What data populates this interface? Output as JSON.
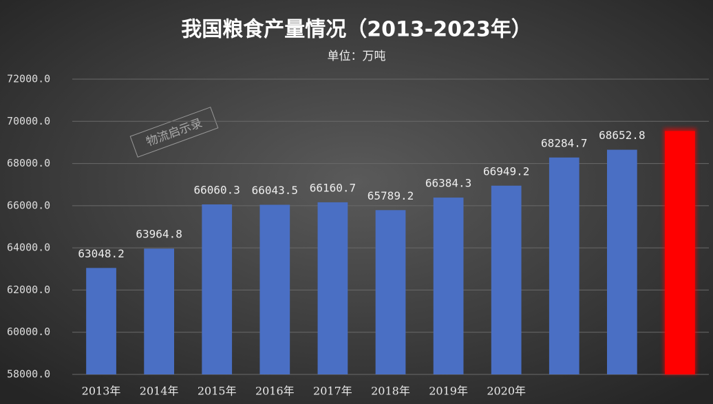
{
  "chart_data": {
    "type": "bar",
    "title": "我国粮食产量情况（2013-2023年）",
    "subtitle": "单位：万吨",
    "watermark": "物流启示录",
    "categories": [
      "2013年",
      "2014年",
      "2015年",
      "2016年",
      "2017年",
      "2018年",
      "2019年",
      "2020年",
      null,
      null,
      null
    ],
    "values": [
      63048.2,
      63964.8,
      66060.3,
      66043.5,
      66160.7,
      65789.2,
      66384.3,
      66949.2,
      68284.7,
      68652.8,
      69541
    ],
    "value_labels": [
      "63048.2",
      "63964.8",
      "66060.3",
      "66043.5",
      "66160.7",
      "65789.2",
      "66384.3",
      "66949.2",
      "68284.7",
      "68652.8",
      null
    ],
    "colors": [
      "#4a6fc4",
      "#4a6fc4",
      "#4a6fc4",
      "#4a6fc4",
      "#4a6fc4",
      "#4a6fc4",
      "#4a6fc4",
      "#4a6fc4",
      "#4a6fc4",
      "#4a6fc4",
      "#ff0000"
    ],
    "ylim": [
      58000,
      72000
    ],
    "yticks": [
      {
        "value": 58000,
        "label": "58000.0"
      },
      {
        "value": 60000,
        "label": "60000.0"
      },
      {
        "value": 62000,
        "label": "62000.0"
      },
      {
        "value": 64000,
        "label": "64000.0"
      },
      {
        "value": 66000,
        "label": "66000.0"
      },
      {
        "value": 68000,
        "label": "68000.0"
      },
      {
        "value": 70000,
        "label": "70000.0"
      },
      {
        "value": 72000,
        "label": "72000.0"
      }
    ],
    "grid": true
  }
}
